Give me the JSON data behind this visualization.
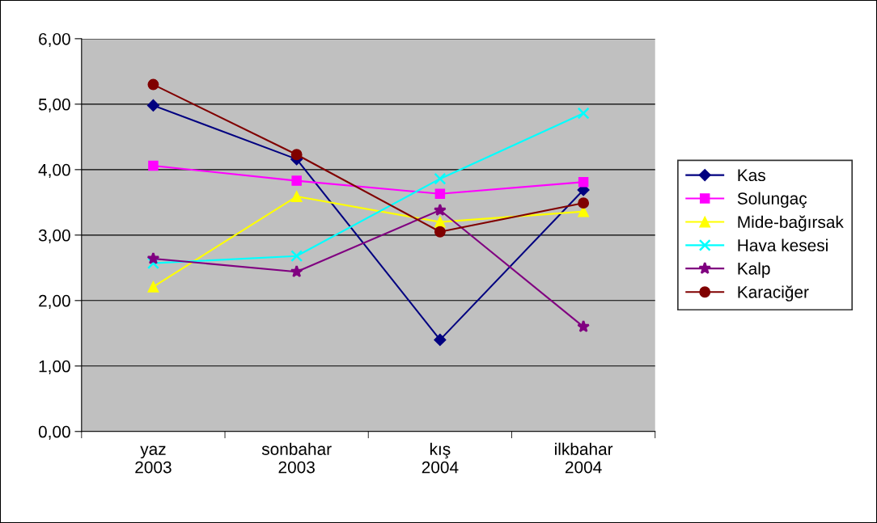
{
  "chart_data": {
    "type": "line",
    "categories": [
      "yaz\n2003",
      "sonbahar\n2003",
      "kış\n2004",
      "ilkbahar\n2004"
    ],
    "ylim": [
      0,
      6
    ],
    "yticks": [
      {
        "value": 0,
        "label": "0,00"
      },
      {
        "value": 1,
        "label": "1,00"
      },
      {
        "value": 2,
        "label": "2,00"
      },
      {
        "value": 3,
        "label": "3,00"
      },
      {
        "value": 4,
        "label": "4,00"
      },
      {
        "value": 5,
        "label": "5,00"
      },
      {
        "value": 6,
        "label": "6,00"
      }
    ],
    "grid": "y",
    "legend": "right",
    "series": [
      {
        "name": "Kas",
        "color": "#000080",
        "marker": "diamond",
        "values": [
          4.98,
          4.16,
          1.4,
          3.69
        ]
      },
      {
        "name": "Solungaç",
        "color": "#ff00ff",
        "marker": "square",
        "values": [
          4.06,
          3.83,
          3.63,
          3.81
        ]
      },
      {
        "name": "Mide-bağırsak",
        "color": "#ffff00",
        "marker": "triangle",
        "values": [
          2.21,
          3.59,
          3.2,
          3.36
        ]
      },
      {
        "name": "Hava kesesi",
        "color": "#00ffff",
        "marker": "cross",
        "values": [
          2.57,
          2.68,
          3.86,
          4.86
        ]
      },
      {
        "name": "Kalp",
        "color": "#800080",
        "marker": "star",
        "values": [
          2.64,
          2.44,
          3.38,
          1.6
        ]
      },
      {
        "name": "Karaciğer",
        "color": "#800000",
        "marker": "circle",
        "values": [
          5.3,
          4.23,
          3.05,
          3.49
        ]
      }
    ]
  }
}
